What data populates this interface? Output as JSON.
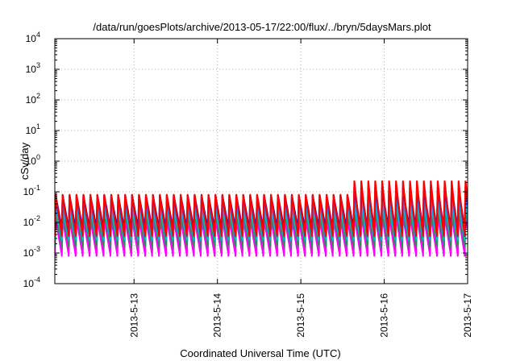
{
  "chart_data": {
    "type": "line",
    "title": "/data/run/goesPlots/archive/2013-05-17/22:00/flux/../bryn/5daysMars.plot",
    "xlabel": "Coordinated Universal Time (UTC)",
    "ylabel": "cSv/day",
    "yscale": "log",
    "ylim": [
      0.0001,
      10000
    ],
    "xlim": [
      -0.95,
      4.0
    ],
    "x_ticks": [
      {
        "x": 0,
        "label": "2013-5-13"
      },
      {
        "x": 1,
        "label": "2013-5-14"
      },
      {
        "x": 2,
        "label": "2013-5-15"
      },
      {
        "x": 3,
        "label": "2013-5-16"
      },
      {
        "x": 4,
        "label": "2013-5-17"
      }
    ],
    "y_ticks": [
      {
        "value": 0.0001,
        "base": "10",
        "exp": "-4"
      },
      {
        "value": 0.001,
        "base": "10",
        "exp": "-3"
      },
      {
        "value": 0.01,
        "base": "10",
        "exp": "-2"
      },
      {
        "value": 0.1,
        "base": "10",
        "exp": "-1"
      },
      {
        "value": 1,
        "base": "10",
        "exp": "0"
      },
      {
        "value": 10,
        "base": "10",
        "exp": "1"
      },
      {
        "value": 100,
        "base": "10",
        "exp": "2"
      },
      {
        "value": 1000,
        "base": "10",
        "exp": "3"
      },
      {
        "value": 10000,
        "base": "10",
        "exp": "4"
      }
    ],
    "grid": true,
    "legend": "none",
    "cycle_days": 0.0833,
    "series": [
      {
        "color": "#ff0000",
        "peak_before": 0.08,
        "peak_after": 0.22,
        "trough": 0.004
      },
      {
        "color": "#0000cc",
        "peak_before": 0.075,
        "peak_after": 0.14,
        "trough": 0.006
      },
      {
        "color": "#1e90ff",
        "peak_before": 0.045,
        "peak_after": 0.08,
        "trough": 0.004
      },
      {
        "color": "#00bcd4",
        "peak_before": 0.025,
        "peak_after": 0.04,
        "trough": 0.003
      },
      {
        "color": "#2e8b57",
        "peak_before": 0.018,
        "peak_after": 0.025,
        "trough": 0.0018
      },
      {
        "color": "#ff00ff",
        "peak_before": 0.013,
        "peak_after": 0.018,
        "trough": 0.0009
      }
    ],
    "level_change_x": 2.6
  }
}
